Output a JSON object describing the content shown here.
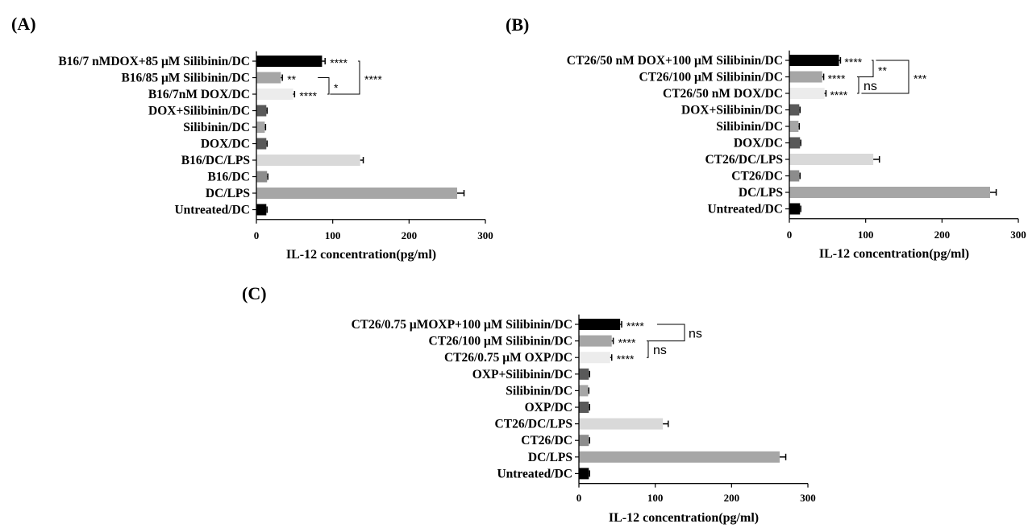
{
  "chart_data": [
    {
      "type": "bar",
      "orientation": "horizontal",
      "panel": "(A)",
      "xlabel": "IL-12 concentration(pg/ml)",
      "xlim": [
        0,
        300
      ],
      "xticks": [
        "0",
        "100",
        "200",
        "300"
      ],
      "categories": [
        "B16/7 nMDOX+85 μM Silibinin/DC",
        "B16/85 μM Silibinin/DC",
        "B16/7nM DOX/DC",
        "DOX+Silibinin/DC",
        "Silibinin/DC",
        "DOX/DC",
        "B16/DC/LPS",
        "B16/DC",
        "DC/LPS",
        "Untreated/DC"
      ],
      "values": [
        86,
        32,
        48,
        13,
        11,
        13,
        136,
        14,
        263,
        13
      ],
      "errors": [
        4,
        2,
        2,
        1,
        1,
        1,
        4,
        1,
        9,
        1
      ],
      "colors": [
        "#000000",
        "#a6a6a6",
        "#ececec",
        "#595959",
        "#a6a6a6",
        "#595959",
        "#d9d9d9",
        "#8c8c8c",
        "#a6a6a6",
        "#000000"
      ],
      "bar_annotations": [
        {
          "row": 0,
          "text": "****"
        },
        {
          "row": 1,
          "text": "**"
        },
        {
          "row": 2,
          "text": "****"
        }
      ],
      "comparisons": [
        {
          "rows": [
            1,
            2
          ],
          "text": "*"
        },
        {
          "rows": [
            0,
            2
          ],
          "text": "****"
        }
      ]
    },
    {
      "type": "bar",
      "orientation": "horizontal",
      "panel": "(B)",
      "xlabel": "IL-12 concentration(pg/ml)",
      "xlim": [
        0,
        300
      ],
      "xticks": [
        "0",
        "100",
        "200",
        "300"
      ],
      "categories": [
        "CT26/50 nM DOX+100 μM Silibinin/DC",
        "CT26/100 μM Silibinin/DC",
        "CT26/50 nM DOX/DC",
        "DOX+Silibinin/DC",
        "Silibinin/DC",
        "DOX/DC",
        "CT26/DC/LPS",
        "CT26/DC",
        "DC/LPS",
        "Untreated/DC"
      ],
      "values": [
        65,
        43,
        46,
        13,
        12,
        14,
        110,
        13,
        263,
        14
      ],
      "errors": [
        2,
        2,
        2,
        1,
        1,
        1,
        8,
        1,
        8,
        1
      ],
      "colors": [
        "#000000",
        "#a6a6a6",
        "#ececec",
        "#595959",
        "#a6a6a6",
        "#595959",
        "#d9d9d9",
        "#8c8c8c",
        "#a6a6a6",
        "#000000"
      ],
      "bar_annotations": [
        {
          "row": 0,
          "text": "****"
        },
        {
          "row": 1,
          "text": "****"
        },
        {
          "row": 2,
          "text": "****"
        }
      ],
      "comparisons": [
        {
          "rows": [
            0,
            1
          ],
          "text": "**"
        },
        {
          "rows": [
            1,
            2
          ],
          "text": "ns"
        },
        {
          "rows": [
            0,
            2
          ],
          "text": "***"
        }
      ]
    },
    {
      "type": "bar",
      "orientation": "horizontal",
      "panel": "(C)",
      "xlabel": "IL-12 concentration(pg/ml)",
      "xlim": [
        0,
        300
      ],
      "xticks": [
        "0",
        "100",
        "200",
        "300"
      ],
      "categories": [
        "CT26/0.75 μMOXP+100 μM Silibinin/DC",
        "CT26/100 μM Silibinin/DC",
        "CT26/0.75 μM OXP/DC",
        "OXP+Silibinin/DC",
        "Silibinin/DC",
        "OXP/DC",
        "CT26/DC/LPS",
        "CT26/DC",
        "DC/LPS",
        "Untreated/DC"
      ],
      "values": [
        54,
        43,
        41,
        13,
        12,
        13,
        110,
        13,
        263,
        13
      ],
      "errors": [
        2,
        2,
        2,
        1,
        1,
        1,
        7,
        1,
        8,
        1
      ],
      "colors": [
        "#000000",
        "#a6a6a6",
        "#ececec",
        "#595959",
        "#a6a6a6",
        "#595959",
        "#d9d9d9",
        "#8c8c8c",
        "#a6a6a6",
        "#000000"
      ],
      "bar_annotations": [
        {
          "row": 0,
          "text": "****"
        },
        {
          "row": 1,
          "text": "****"
        },
        {
          "row": 2,
          "text": "****"
        }
      ],
      "comparisons": [
        {
          "rows": [
            1,
            2
          ],
          "text": "ns"
        },
        {
          "rows": [
            0,
            1
          ],
          "text": "ns"
        }
      ]
    }
  ]
}
